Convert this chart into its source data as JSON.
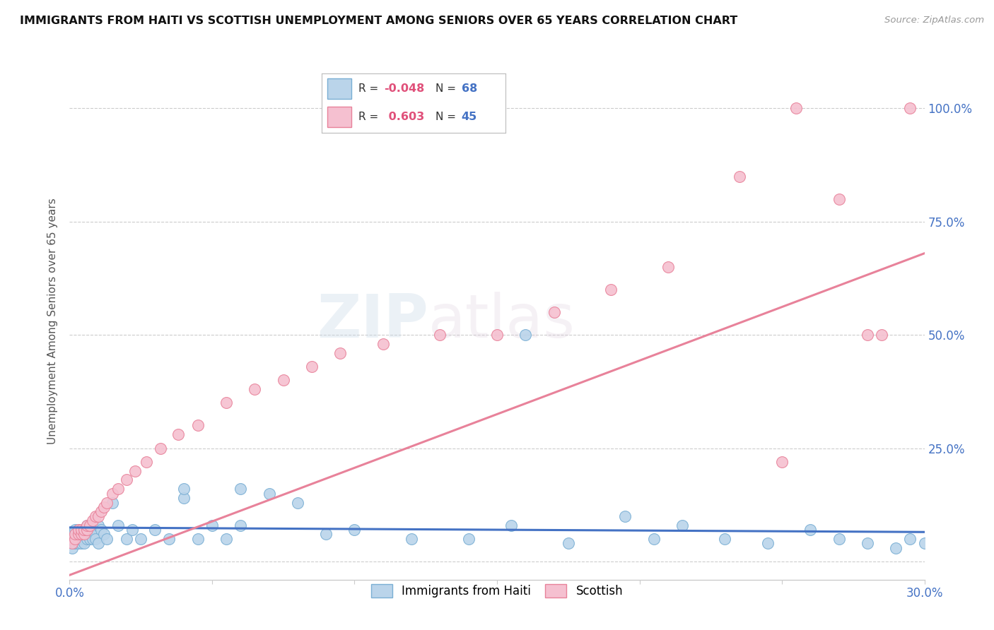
{
  "title": "IMMIGRANTS FROM HAITI VS SCOTTISH UNEMPLOYMENT AMONG SENIORS OVER 65 YEARS CORRELATION CHART",
  "source": "Source: ZipAtlas.com",
  "ylabel": "Unemployment Among Seniors over 65 years",
  "x_min": 0.0,
  "x_max": 0.3,
  "y_min": -0.04,
  "y_max": 1.1,
  "y_ticks": [
    0.0,
    0.25,
    0.5,
    0.75,
    1.0
  ],
  "grid_color": "#cccccc",
  "background_color": "#ffffff",
  "legend_R1": "-0.048",
  "legend_N1": "68",
  "legend_R2": "0.603",
  "legend_N2": "45",
  "series1_color": "#bad4ea",
  "series1_edge": "#7aafd4",
  "series1_line": "#4472c4",
  "series2_color": "#f5c0d0",
  "series2_edge": "#e8829a",
  "series2_line": "#e8829a",
  "haiti_x": [
    0.001,
    0.001,
    0.001,
    0.001,
    0.002,
    0.002,
    0.002,
    0.002,
    0.003,
    0.003,
    0.003,
    0.003,
    0.004,
    0.004,
    0.004,
    0.005,
    0.005,
    0.005,
    0.006,
    0.006,
    0.006,
    0.007,
    0.007,
    0.008,
    0.008,
    0.009,
    0.009,
    0.01,
    0.01,
    0.011,
    0.012,
    0.013,
    0.015,
    0.017,
    0.02,
    0.022,
    0.025,
    0.03,
    0.035,
    0.04,
    0.045,
    0.05,
    0.055,
    0.06,
    0.07,
    0.08,
    0.09,
    0.1,
    0.12,
    0.14,
    0.155,
    0.16,
    0.175,
    0.195,
    0.205,
    0.215,
    0.23,
    0.245,
    0.26,
    0.27,
    0.28,
    0.29,
    0.295,
    0.3,
    0.305,
    0.31,
    0.04,
    0.06
  ],
  "haiti_y": [
    0.05,
    0.04,
    0.06,
    0.03,
    0.05,
    0.04,
    0.06,
    0.07,
    0.04,
    0.05,
    0.06,
    0.07,
    0.04,
    0.06,
    0.05,
    0.05,
    0.07,
    0.04,
    0.06,
    0.05,
    0.08,
    0.05,
    0.07,
    0.05,
    0.08,
    0.06,
    0.05,
    0.08,
    0.04,
    0.07,
    0.06,
    0.05,
    0.13,
    0.08,
    0.05,
    0.07,
    0.05,
    0.07,
    0.05,
    0.14,
    0.05,
    0.08,
    0.05,
    0.08,
    0.15,
    0.13,
    0.06,
    0.07,
    0.05,
    0.05,
    0.08,
    0.5,
    0.04,
    0.1,
    0.05,
    0.08,
    0.05,
    0.04,
    0.07,
    0.05,
    0.04,
    0.03,
    0.05,
    0.04,
    0.05,
    0.04,
    0.16,
    0.16
  ],
  "scottish_x": [
    0.001,
    0.001,
    0.002,
    0.002,
    0.003,
    0.003,
    0.004,
    0.004,
    0.005,
    0.005,
    0.006,
    0.006,
    0.007,
    0.008,
    0.009,
    0.01,
    0.011,
    0.012,
    0.013,
    0.015,
    0.017,
    0.02,
    0.023,
    0.027,
    0.032,
    0.038,
    0.045,
    0.055,
    0.065,
    0.075,
    0.085,
    0.095,
    0.11,
    0.13,
    0.15,
    0.17,
    0.19,
    0.21,
    0.235,
    0.255,
    0.27,
    0.285,
    0.295,
    0.28,
    0.25
  ],
  "scottish_y": [
    0.05,
    0.04,
    0.05,
    0.06,
    0.06,
    0.07,
    0.06,
    0.07,
    0.06,
    0.07,
    0.07,
    0.08,
    0.08,
    0.09,
    0.1,
    0.1,
    0.11,
    0.12,
    0.13,
    0.15,
    0.16,
    0.18,
    0.2,
    0.22,
    0.25,
    0.28,
    0.3,
    0.35,
    0.38,
    0.4,
    0.43,
    0.46,
    0.48,
    0.5,
    0.5,
    0.55,
    0.6,
    0.65,
    0.85,
    1.0,
    0.8,
    0.5,
    1.0,
    0.5,
    0.22
  ],
  "haiti_trend_x": [
    0.0,
    0.3
  ],
  "haiti_trend_y": [
    0.075,
    0.065
  ],
  "scottish_trend_x": [
    0.0,
    0.3
  ],
  "scottish_trend_y": [
    -0.03,
    0.68
  ]
}
